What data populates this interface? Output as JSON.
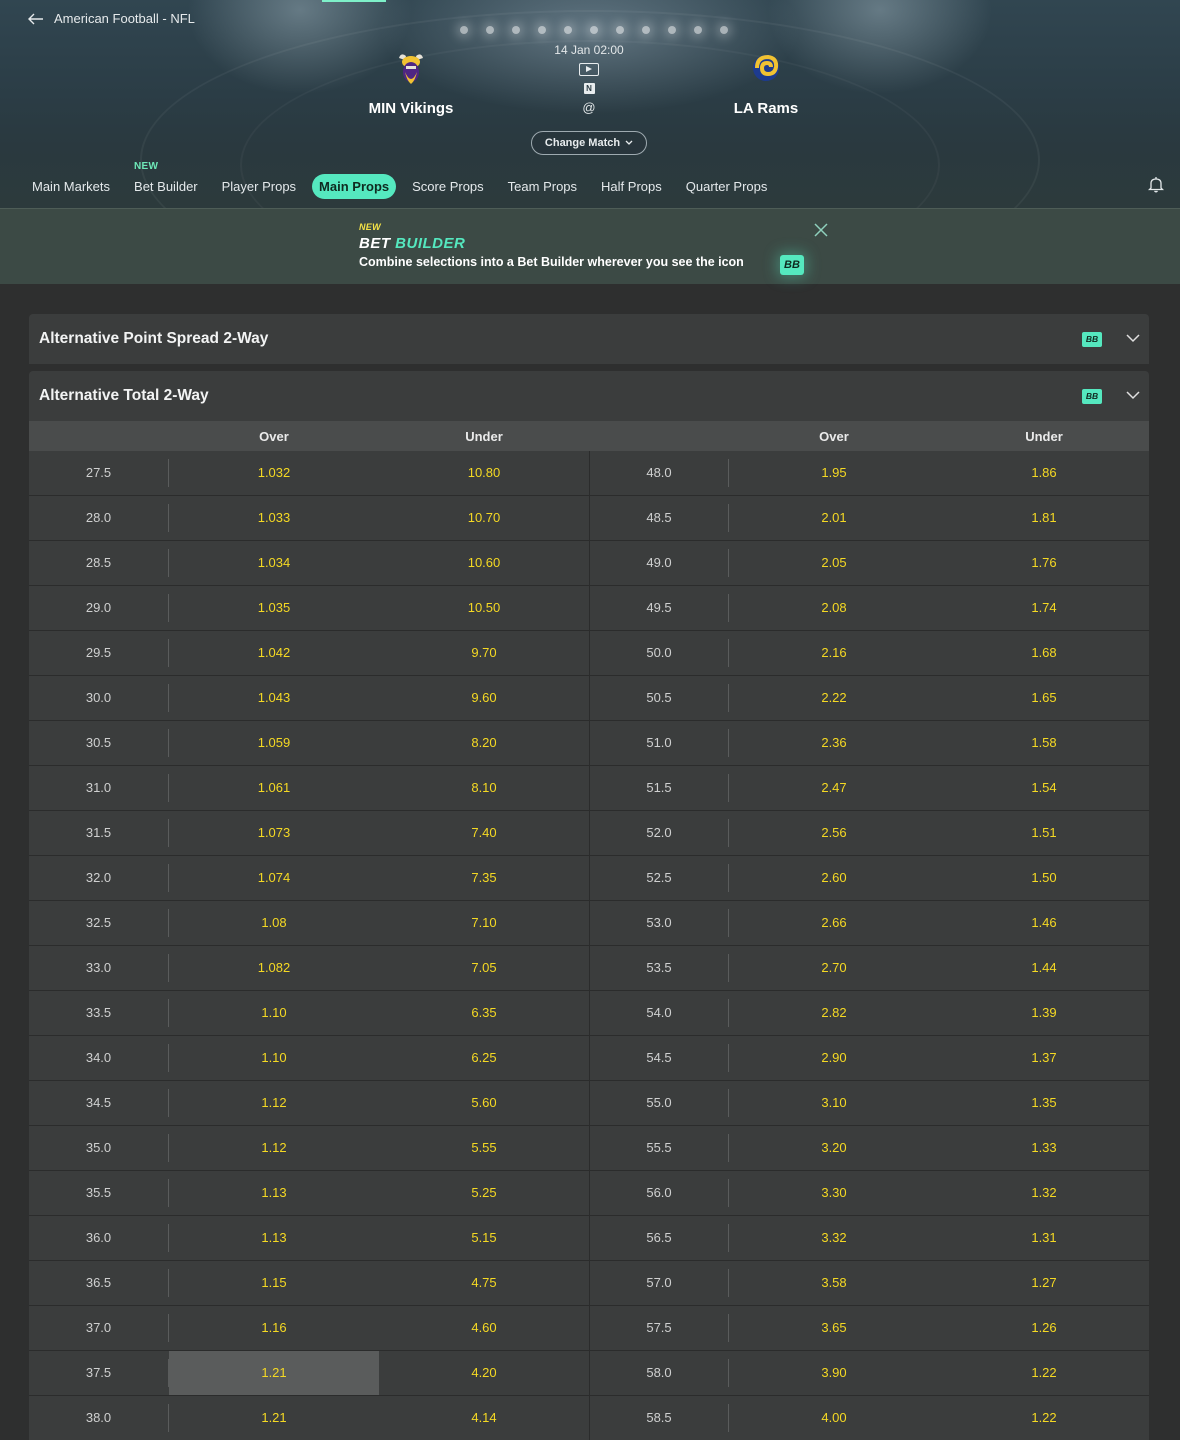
{
  "breadcrumb": "American Football - NFL",
  "event": {
    "home_team": "MIN Vikings",
    "away_team": "LA Rams",
    "datetime": "14 Jan 02:00",
    "network_badge": "N",
    "separator": "@",
    "change_match_label": "Change Match"
  },
  "tabs": [
    {
      "label": "Main Markets"
    },
    {
      "label": "Bet Builder",
      "badge": "NEW"
    },
    {
      "label": "Player Props"
    },
    {
      "label": "Main Props",
      "active": true
    },
    {
      "label": "Score Props"
    },
    {
      "label": "Team Props"
    },
    {
      "label": "Half Props"
    },
    {
      "label": "Quarter Props"
    }
  ],
  "banner": {
    "new": "NEW",
    "title_1": "BET",
    "title_2": "BUILDER",
    "description": "Combine selections into a Bet Builder wherever you see the icon",
    "icon": "BB"
  },
  "markets": [
    {
      "title": "Alternative Point Spread 2-Way",
      "tag": "BB"
    },
    {
      "title": "Alternative Total 2-Way",
      "tag": "BB"
    }
  ],
  "columns": {
    "over_left": "Over",
    "under_left": "Under",
    "over_right": "Over",
    "under_right": "Under"
  },
  "rows": [
    {
      "l_line": "27.5",
      "l_over": "1.032",
      "l_under": "10.80",
      "r_line": "48.0",
      "r_over": "1.95",
      "r_under": "1.86"
    },
    {
      "l_line": "28.0",
      "l_over": "1.033",
      "l_under": "10.70",
      "r_line": "48.5",
      "r_over": "2.01",
      "r_under": "1.81"
    },
    {
      "l_line": "28.5",
      "l_over": "1.034",
      "l_under": "10.60",
      "r_line": "49.0",
      "r_over": "2.05",
      "r_under": "1.76"
    },
    {
      "l_line": "29.0",
      "l_over": "1.035",
      "l_under": "10.50",
      "r_line": "49.5",
      "r_over": "2.08",
      "r_under": "1.74"
    },
    {
      "l_line": "29.5",
      "l_over": "1.042",
      "l_under": "9.70",
      "r_line": "50.0",
      "r_over": "2.16",
      "r_under": "1.68"
    },
    {
      "l_line": "30.0",
      "l_over": "1.043",
      "l_under": "9.60",
      "r_line": "50.5",
      "r_over": "2.22",
      "r_under": "1.65"
    },
    {
      "l_line": "30.5",
      "l_over": "1.059",
      "l_under": "8.20",
      "r_line": "51.0",
      "r_over": "2.36",
      "r_under": "1.58"
    },
    {
      "l_line": "31.0",
      "l_over": "1.061",
      "l_under": "8.10",
      "r_line": "51.5",
      "r_over": "2.47",
      "r_under": "1.54"
    },
    {
      "l_line": "31.5",
      "l_over": "1.073",
      "l_under": "7.40",
      "r_line": "52.0",
      "r_over": "2.56",
      "r_under": "1.51"
    },
    {
      "l_line": "32.0",
      "l_over": "1.074",
      "l_under": "7.35",
      "r_line": "52.5",
      "r_over": "2.60",
      "r_under": "1.50"
    },
    {
      "l_line": "32.5",
      "l_over": "1.08",
      "l_under": "7.10",
      "r_line": "53.0",
      "r_over": "2.66",
      "r_under": "1.46"
    },
    {
      "l_line": "33.0",
      "l_over": "1.082",
      "l_under": "7.05",
      "r_line": "53.5",
      "r_over": "2.70",
      "r_under": "1.44"
    },
    {
      "l_line": "33.5",
      "l_over": "1.10",
      "l_under": "6.35",
      "r_line": "54.0",
      "r_over": "2.82",
      "r_under": "1.39"
    },
    {
      "l_line": "34.0",
      "l_over": "1.10",
      "l_under": "6.25",
      "r_line": "54.5",
      "r_over": "2.90",
      "r_under": "1.37"
    },
    {
      "l_line": "34.5",
      "l_over": "1.12",
      "l_under": "5.60",
      "r_line": "55.0",
      "r_over": "3.10",
      "r_under": "1.35"
    },
    {
      "l_line": "35.0",
      "l_over": "1.12",
      "l_under": "5.55",
      "r_line": "55.5",
      "r_over": "3.20",
      "r_under": "1.33"
    },
    {
      "l_line": "35.5",
      "l_over": "1.13",
      "l_under": "5.25",
      "r_line": "56.0",
      "r_over": "3.30",
      "r_under": "1.32"
    },
    {
      "l_line": "36.0",
      "l_over": "1.13",
      "l_under": "5.15",
      "r_line": "56.5",
      "r_over": "3.32",
      "r_under": "1.31"
    },
    {
      "l_line": "36.5",
      "l_over": "1.15",
      "l_under": "4.75",
      "r_line": "57.0",
      "r_over": "3.58",
      "r_under": "1.27"
    },
    {
      "l_line": "37.0",
      "l_over": "1.16",
      "l_under": "4.60",
      "r_line": "57.5",
      "r_over": "3.65",
      "r_under": "1.26"
    },
    {
      "l_line": "37.5",
      "l_over": "1.21",
      "l_under": "4.20",
      "r_line": "58.0",
      "r_over": "3.90",
      "r_under": "1.22",
      "hover": "l_over"
    },
    {
      "l_line": "38.0",
      "l_over": "1.21",
      "l_under": "4.14",
      "r_line": "58.5",
      "r_over": "4.00",
      "r_under": "1.22"
    }
  ],
  "colors": {
    "accent": "#55e8bf",
    "odds": "#f5d923",
    "row_bg": "#3b3d3d"
  }
}
